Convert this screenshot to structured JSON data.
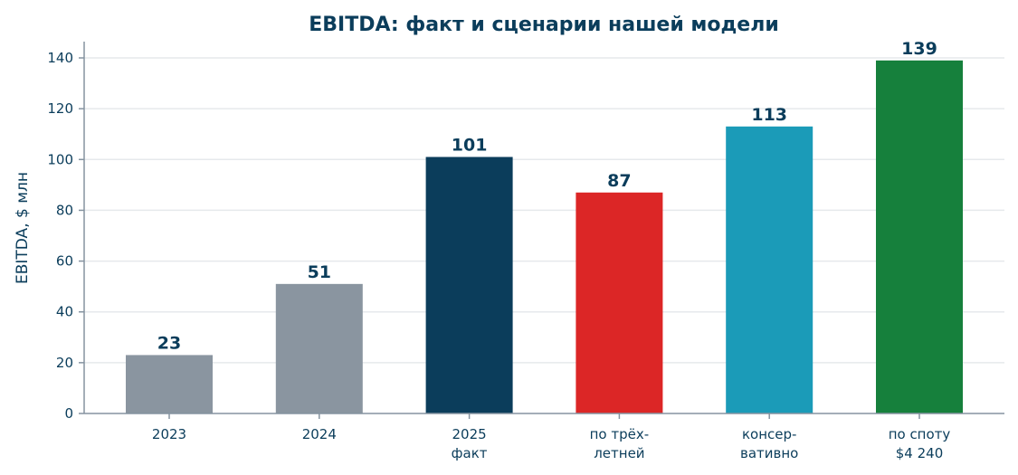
{
  "chart_data": {
    "type": "bar",
    "title": "EBITDA: факт и сценарии нашей модели",
    "xlabel": "",
    "ylabel": "EBITDA, $ млн",
    "ylim": [
      0,
      146
    ],
    "yticks": [
      0,
      20,
      40,
      60,
      80,
      100,
      120,
      140
    ],
    "grid": "horizontal",
    "categories": [
      [
        "2023"
      ],
      [
        "2024"
      ],
      [
        "2025",
        "факт"
      ],
      [
        "по трёх-",
        "летней"
      ],
      [
        "консер-",
        "вативно"
      ],
      [
        "по споту",
        "$4 240"
      ]
    ],
    "values": [
      23,
      51,
      101,
      87,
      113,
      139
    ],
    "data_labels": [
      "23",
      "51",
      "101",
      "87",
      "113",
      "139"
    ],
    "colors": [
      "#8a95a0",
      "#8a95a0",
      "#0b3d5b",
      "#dc2626",
      "#1b9bb8",
      "#16803c"
    ]
  }
}
